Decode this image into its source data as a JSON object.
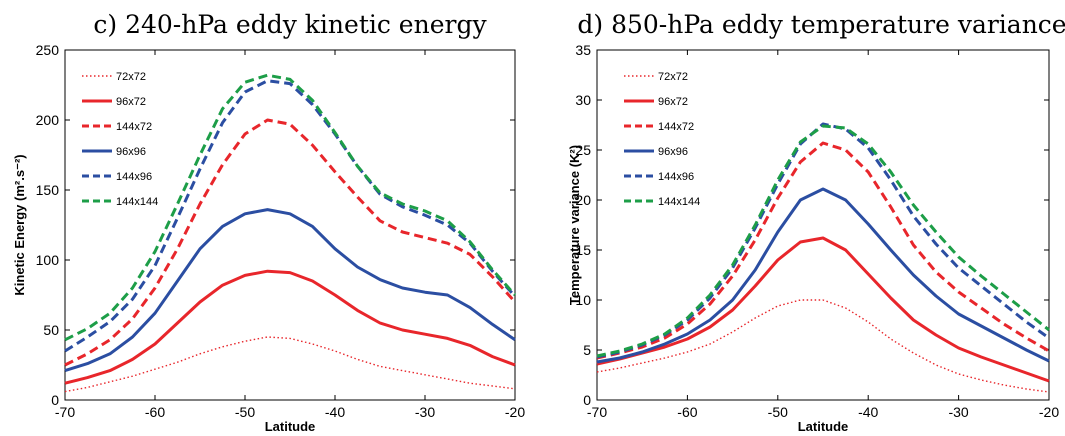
{
  "chart_data": [
    {
      "type": "line",
      "title": "c) 240-hPa eddy kinetic energy",
      "xlabel": "Latitude",
      "ylabel": "Kinetic Energy (m².s⁻²)",
      "xlim": [
        -70,
        -20
      ],
      "ylim": [
        0,
        250
      ],
      "xticks": [
        -70,
        -60,
        -50,
        -40,
        -30,
        -20
      ],
      "yticks": [
        0,
        50,
        100,
        150,
        200,
        250
      ],
      "grid": false,
      "legend_position": "top-left",
      "x": [
        -70,
        -67.5,
        -65,
        -62.5,
        -60,
        -57.5,
        -55,
        -52.5,
        -50,
        -47.5,
        -45,
        -42.5,
        -40,
        -37.5,
        -35,
        -32.5,
        -30,
        -27.5,
        -25,
        -22.5,
        -20
      ],
      "series": [
        {
          "name": "72x72",
          "color": "#e8262b",
          "dash": "dotted",
          "values": [
            6,
            9,
            13,
            17,
            22,
            27,
            33,
            38,
            42,
            45,
            44,
            40,
            35,
            29,
            24,
            21,
            18,
            15,
            12,
            10,
            8
          ]
        },
        {
          "name": "96x72",
          "color": "#e8262b",
          "dash": "solid",
          "values": [
            12,
            16,
            21,
            29,
            40,
            55,
            70,
            82,
            89,
            92,
            91,
            85,
            75,
            64,
            55,
            50,
            47,
            44,
            39,
            31,
            25
          ]
        },
        {
          "name": "144x72",
          "color": "#e8262b",
          "dash": "dashed",
          "values": [
            25,
            33,
            43,
            58,
            80,
            108,
            140,
            168,
            190,
            200,
            197,
            182,
            163,
            145,
            128,
            120,
            116,
            112,
            104,
            88,
            70
          ]
        },
        {
          "name": "96x96",
          "color": "#2b4ea2",
          "dash": "solid",
          "values": [
            21,
            26,
            33,
            45,
            62,
            85,
            108,
            124,
            133,
            136,
            133,
            124,
            108,
            95,
            86,
            80,
            77,
            75,
            66,
            54,
            43
          ]
        },
        {
          "name": "144x96",
          "color": "#2b4ea2",
          "dash": "dashed",
          "values": [
            35,
            45,
            56,
            72,
            96,
            130,
            165,
            198,
            220,
            228,
            226,
            211,
            190,
            167,
            147,
            138,
            132,
            125,
            112,
            92,
            74
          ]
        },
        {
          "name": "144x144",
          "color": "#1d9e48",
          "dash": "dashed",
          "values": [
            43,
            51,
            62,
            80,
            106,
            140,
            175,
            208,
            227,
            232,
            229,
            214,
            191,
            167,
            148,
            140,
            135,
            128,
            113,
            93,
            75
          ]
        }
      ]
    },
    {
      "type": "line",
      "title": "d) 850-hPa eddy temperature variance",
      "xlabel": "Latitude",
      "ylabel": "Temperature variance (K²)",
      "xlim": [
        -70,
        -20
      ],
      "ylim": [
        0,
        35
      ],
      "xticks": [
        -70,
        -60,
        -50,
        -40,
        -30,
        -20
      ],
      "yticks": [
        0,
        5,
        10,
        15,
        20,
        25,
        30,
        35
      ],
      "grid": false,
      "legend_position": "top-left",
      "x": [
        -70,
        -67.5,
        -65,
        -62.5,
        -60,
        -57.5,
        -55,
        -52.5,
        -50,
        -47.5,
        -45,
        -42.5,
        -40,
        -37.5,
        -35,
        -32.5,
        -30,
        -27.5,
        -25,
        -22.5,
        -20
      ],
      "series": [
        {
          "name": "72x72",
          "color": "#e8262b",
          "dash": "dotted",
          "values": [
            2.8,
            3.2,
            3.7,
            4.2,
            4.8,
            5.6,
            6.8,
            8.2,
            9.4,
            10.0,
            10.0,
            9.2,
            7.8,
            6.1,
            4.7,
            3.5,
            2.6,
            2.0,
            1.5,
            1.1,
            0.8
          ]
        },
        {
          "name": "96x72",
          "color": "#e8262b",
          "dash": "solid",
          "values": [
            3.6,
            4.1,
            4.7,
            5.3,
            6.1,
            7.3,
            9.0,
            11.4,
            14.0,
            15.8,
            16.2,
            15.0,
            12.6,
            10.2,
            8.0,
            6.5,
            5.2,
            4.3,
            3.5,
            2.7,
            1.9
          ]
        },
        {
          "name": "144x72",
          "color": "#e8262b",
          "dash": "dashed",
          "values": [
            4.2,
            4.7,
            5.3,
            6.2,
            7.6,
            9.6,
            12.4,
            16.0,
            20.2,
            23.8,
            25.7,
            25.0,
            22.8,
            19.3,
            15.5,
            12.8,
            10.8,
            9.2,
            7.6,
            6.2,
            4.9
          ]
        },
        {
          "name": "96x96",
          "color": "#2b4ea2",
          "dash": "solid",
          "values": [
            3.8,
            4.2,
            4.8,
            5.6,
            6.6,
            8.0,
            10.0,
            13.0,
            16.8,
            20.0,
            21.1,
            20.0,
            17.6,
            15.0,
            12.5,
            10.4,
            8.6,
            7.4,
            6.2,
            5.0,
            3.9
          ]
        },
        {
          "name": "144x96",
          "color": "#2b4ea2",
          "dash": "dashed",
          "values": [
            4.3,
            4.8,
            5.5,
            6.5,
            8.0,
            10.2,
            13.2,
            17.2,
            21.6,
            25.6,
            27.6,
            27.1,
            25.2,
            22.0,
            18.4,
            15.6,
            13.2,
            11.4,
            9.6,
            7.8,
            6.2
          ]
        },
        {
          "name": "144x144",
          "color": "#1d9e48",
          "dash": "dashed",
          "values": [
            4.4,
            4.9,
            5.6,
            6.6,
            8.2,
            10.5,
            13.5,
            17.5,
            22.0,
            25.8,
            27.4,
            27.2,
            25.6,
            22.8,
            19.5,
            16.8,
            14.3,
            12.4,
            10.6,
            8.8,
            7.0
          ]
        }
      ]
    }
  ]
}
